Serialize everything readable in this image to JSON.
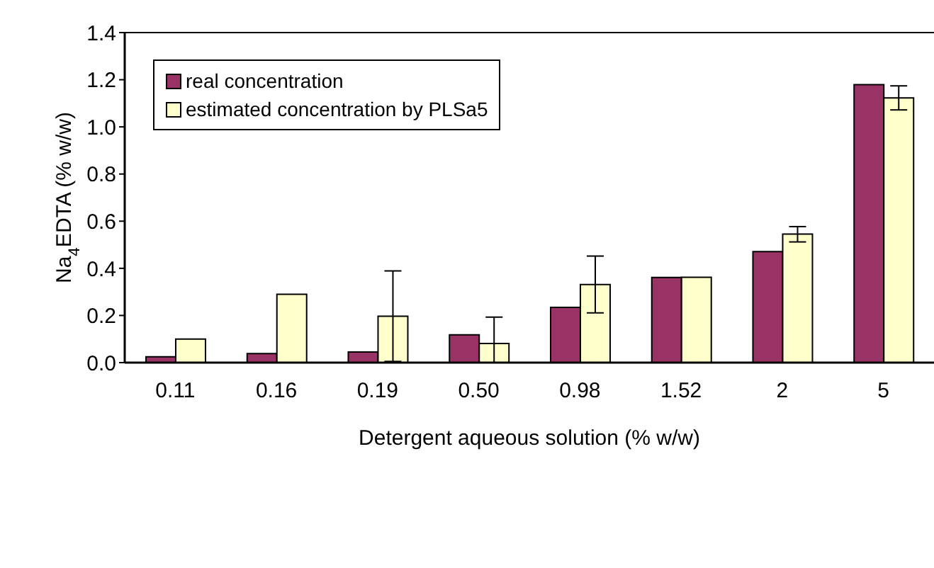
{
  "chart_data": {
    "type": "bar",
    "xlabel": "Detergent aqueous solution (% w/w)",
    "ylabel": "Na$_{4}$EDTA (% w/w)",
    "categories": [
      "0.11",
      "0.16",
      "0.19",
      "0.50",
      "0.98",
      "1.52",
      "2",
      "5"
    ],
    "series": [
      {
        "name": "real concentration",
        "color": "#993366",
        "values": [
          0.025,
          0.038,
          0.045,
          0.118,
          0.234,
          0.361,
          0.471,
          1.179
        ]
      },
      {
        "name": "estimated concentration by PLSa5",
        "color": "#ffffcc",
        "values": [
          0.1,
          0.29,
          0.197,
          0.081,
          0.331,
          0.362,
          0.545,
          1.123
        ],
        "errors": [
          null,
          null,
          [
            0.005,
            0.389
          ],
          [
            0,
            0.193
          ],
          [
            0.211,
            0.452
          ],
          null,
          [
            0.512,
            0.577
          ],
          [
            1.072,
            1.174
          ]
        ]
      }
    ],
    "ylim": [
      0,
      1.4
    ],
    "yticks": [
      {
        "value": 0,
        "label": "0.0"
      },
      {
        "value": 0.2,
        "label": "0.2"
      },
      {
        "value": 0.4,
        "label": "0.4"
      },
      {
        "value": 0.6,
        "label": "0.6"
      },
      {
        "value": 0.8,
        "label": "0.8"
      },
      {
        "value": 1,
        "label": "1.0"
      },
      {
        "value": 1.2,
        "label": "1.2"
      },
      {
        "value": 1.4,
        "label": "1.4"
      }
    ],
    "grid": false,
    "legend": "top left"
  }
}
